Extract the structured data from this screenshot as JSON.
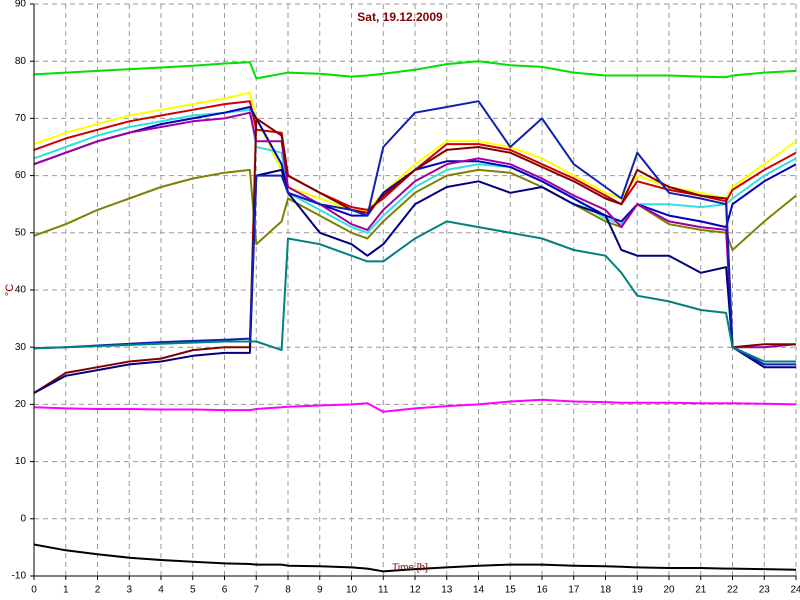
{
  "chart_data": {
    "type": "line",
    "title": "Sat, 19.12.2009",
    "y_label": "°C",
    "x_label": "Time [h]",
    "xlim": [
      0,
      24
    ],
    "ylim": [
      -10,
      90
    ],
    "xticks": [
      0,
      1,
      2,
      3,
      4,
      5,
      6,
      7,
      8,
      9,
      10,
      11,
      12,
      13,
      14,
      15,
      16,
      17,
      18,
      19,
      20,
      21,
      22,
      23,
      24
    ],
    "yticks": [
      -10,
      0,
      10,
      20,
      30,
      40,
      50,
      60,
      70,
      80,
      90
    ],
    "grid": true,
    "x": [
      0,
      1,
      2,
      3,
      4,
      5,
      6,
      6.8,
      7,
      7.8,
      8,
      9,
      10,
      10.5,
      11,
      12,
      13,
      14,
      15,
      16,
      17,
      18,
      18.5,
      19,
      20,
      21,
      21.8,
      22,
      23,
      24
    ],
    "series": [
      {
        "color": "#00e000",
        "values": [
          77.7,
          78,
          78.3,
          78.6,
          78.9,
          79.2,
          79.6,
          79.8,
          77,
          77.8,
          78,
          77.8,
          77.3,
          77.5,
          77.8,
          78.5,
          79.5,
          80,
          79.3,
          79,
          78,
          77.5,
          77.5,
          77.5,
          77.5,
          77.3,
          77.2,
          77.5,
          78,
          78.3
        ]
      },
      {
        "color": "#ffff00",
        "values": [
          65.5,
          67.5,
          69,
          70.5,
          71.5,
          72.5,
          73.5,
          74.5,
          70,
          61,
          58,
          56,
          54,
          54,
          57,
          62,
          66,
          66,
          65,
          63,
          60,
          57,
          56,
          60,
          58,
          57,
          56,
          58,
          62,
          66
        ]
      },
      {
        "color": "#d00000",
        "values": [
          64.5,
          66.5,
          68,
          69.5,
          70.5,
          71.5,
          72.5,
          73,
          68,
          67.5,
          60,
          57,
          54.5,
          54,
          56,
          61,
          65.5,
          65.5,
          64.5,
          62,
          59.5,
          56.5,
          55,
          59,
          57.5,
          56.5,
          55.5,
          57.5,
          61,
          64
        ]
      },
      {
        "color": "#30e0e0",
        "values": [
          63,
          65,
          67,
          68.5,
          69.5,
          70.5,
          71,
          71.5,
          65,
          64,
          57,
          54,
          51,
          50,
          53,
          58,
          61,
          62,
          61.5,
          59,
          56,
          52.5,
          51.5,
          55,
          55,
          54.5,
          55,
          56,
          60,
          63
        ]
      },
      {
        "color": "#0000c0",
        "values": [
          62,
          64,
          66,
          67.5,
          69,
          70,
          71,
          72,
          70,
          62,
          57,
          55,
          53,
          53,
          57,
          61,
          62.5,
          62.5,
          61.5,
          59,
          56,
          53,
          52,
          55,
          53,
          52,
          51,
          55,
          59,
          62
        ]
      },
      {
        "color": "#808000",
        "values": [
          49.5,
          51.5,
          54,
          56,
          58,
          59.5,
          60.5,
          61,
          48,
          52,
          56,
          53,
          50,
          49,
          52,
          57,
          60,
          61,
          60.5,
          58,
          55,
          52,
          51,
          55,
          51.5,
          50.5,
          50,
          47,
          52,
          56.5
        ]
      },
      {
        "color": "#a000a0",
        "values": [
          62,
          64,
          66,
          67.5,
          68.5,
          69.5,
          70,
          71,
          66,
          66,
          58,
          55,
          51.5,
          50.5,
          54,
          59,
          62,
          63,
          62,
          59.5,
          56.5,
          54,
          51,
          55,
          52,
          51,
          50.5,
          30,
          30,
          30.5
        ]
      },
      {
        "color": "#800000",
        "values": [
          22,
          25.5,
          26.5,
          27.5,
          28,
          29.5,
          30,
          30,
          70,
          67,
          60,
          57,
          54,
          53.5,
          56.5,
          61,
          64.5,
          65,
          64,
          61.5,
          59,
          56,
          55,
          61,
          58,
          56.5,
          56,
          30,
          30.5,
          30.5
        ]
      },
      {
        "color": "#000080",
        "values": [
          22,
          25,
          26,
          27,
          27.5,
          28.5,
          29,
          29,
          60,
          61,
          57,
          50,
          48,
          46,
          48,
          55,
          58,
          59,
          57,
          58,
          55,
          53,
          47,
          46,
          46,
          43,
          44,
          30,
          26.5,
          26.5
        ]
      },
      {
        "color": "#1020b0",
        "values": [
          29.8,
          30,
          30.3,
          30.6,
          30.9,
          31.1,
          31.3,
          31.5,
          60,
          60,
          57,
          55,
          54,
          53,
          65,
          71,
          72,
          73,
          65,
          70,
          62,
          58,
          56,
          64,
          57,
          56,
          55,
          30,
          27,
          27
        ]
      },
      {
        "color": "#008080",
        "values": [
          29.8,
          30,
          30.2,
          30.4,
          30.6,
          30.8,
          31,
          31,
          31,
          29.5,
          49,
          48,
          46,
          45,
          45,
          49,
          52,
          51,
          50,
          49,
          47,
          46,
          43,
          39,
          38,
          36.5,
          36,
          30,
          27.5,
          27.5
        ]
      },
      {
        "color": "#ff00ff",
        "values": [
          19.5,
          19.3,
          19.2,
          19.2,
          19.1,
          19.1,
          19,
          19,
          19.2,
          19.5,
          19.6,
          19.8,
          20,
          20.2,
          18.7,
          19.3,
          19.7,
          20,
          20.5,
          20.8,
          20.5,
          20.4,
          20.3,
          20.3,
          20.3,
          20.2,
          20.2,
          20.2,
          20.1,
          20
        ]
      },
      {
        "color": "#000000",
        "values": [
          -4.5,
          -5.5,
          -6.2,
          -6.8,
          -7.2,
          -7.5,
          -7.8,
          -7.9,
          -8,
          -8,
          -8.2,
          -8.3,
          -8.5,
          -8.7,
          -9.2,
          -8.8,
          -8.5,
          -8.2,
          -8,
          -8,
          -8.2,
          -8.3,
          -8.4,
          -8.5,
          -8.6,
          -8.6,
          -8.7,
          -8.7,
          -8.8,
          -8.9
        ]
      }
    ]
  }
}
